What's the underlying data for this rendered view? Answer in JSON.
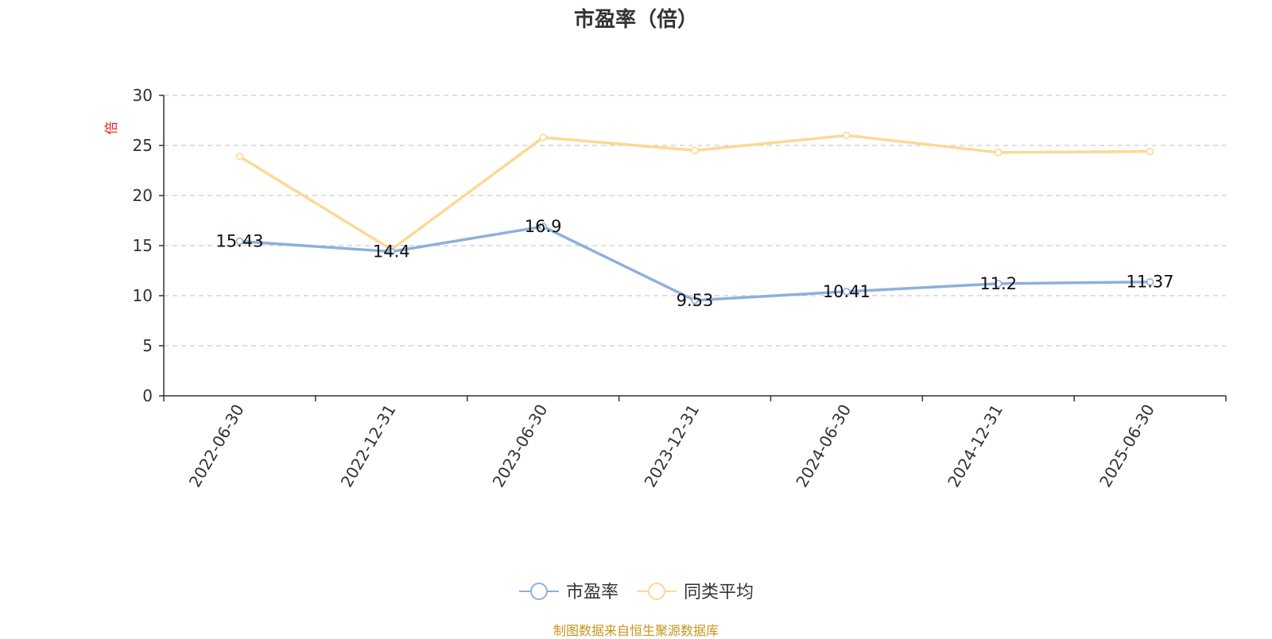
{
  "chart_data": {
    "type": "line",
    "title": "市盈率（倍）",
    "ylabel": "倍",
    "xlabel": "",
    "categories": [
      "2022-06-30",
      "2022-12-31",
      "2023-06-30",
      "2023-12-31",
      "2024-06-30",
      "2024-12-31",
      "2025-06-30"
    ],
    "ylim": [
      0,
      30
    ],
    "yticks": [
      0,
      5,
      10,
      15,
      20,
      25,
      30
    ],
    "grid": true,
    "legend_position": "bottom-center",
    "series": [
      {
        "name": "市盈率",
        "values": [
          15.43,
          14.4,
          16.9,
          9.53,
          10.41,
          11.2,
          11.37
        ],
        "data_labels": [
          "15.43",
          "14.4",
          "16.9",
          "9.53",
          "10.41",
          "11.2",
          "11.37"
        ],
        "color": "#8eb0db"
      },
      {
        "name": "同类平均",
        "values": [
          23.9,
          14.6,
          25.8,
          24.5,
          26.0,
          24.3,
          24.4
        ],
        "color": "#fcd994"
      }
    ]
  },
  "source_note": "制图数据来自恒生聚源数据库",
  "colors": {
    "axis": "#333333",
    "grid": "#cccccc",
    "ylabel": "#e02020",
    "source": "#c8941e"
  }
}
